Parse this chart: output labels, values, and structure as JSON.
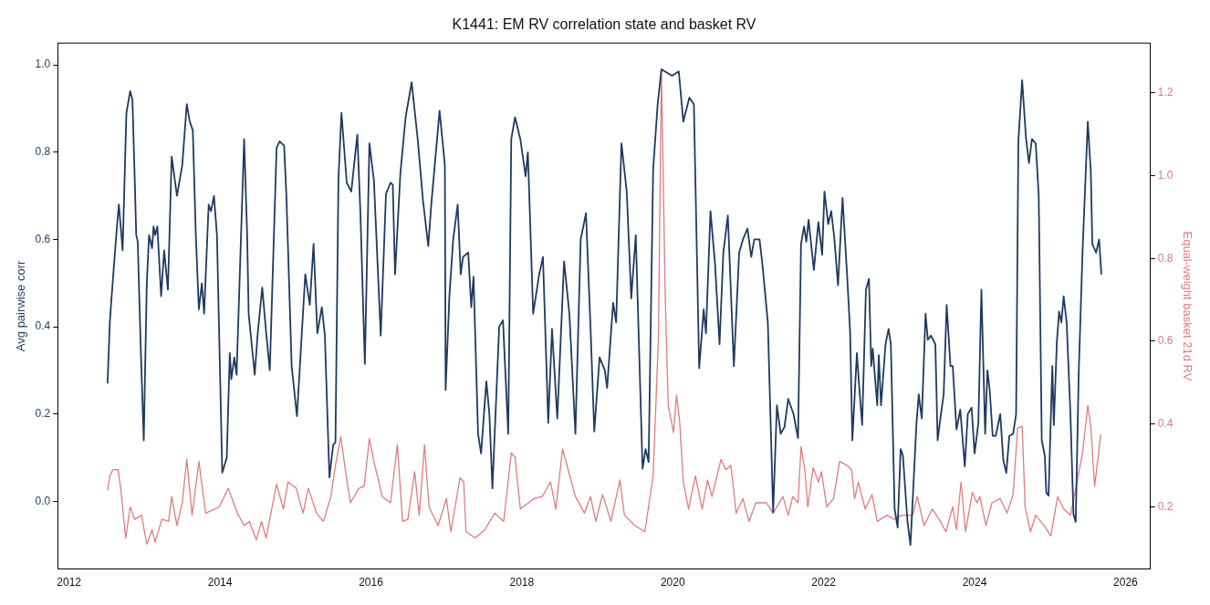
{
  "chart_data": {
    "type": "line",
    "title": "K1441: EM RV correlation state and basket RV",
    "ylabel": "Avg pairwise corr",
    "y2label": "Equal-weight basket 21d RV",
    "xlim": [
      2011.85,
      2026.33
    ],
    "xticks": [
      2012,
      2014,
      2016,
      2018,
      2020,
      2022,
      2024,
      2026
    ],
    "ylim": [
      -0.155,
      1.05
    ],
    "yticks": [
      {
        "value": 0,
        "label": "0.0"
      },
      0.2,
      0.4,
      0.6,
      0.8,
      {
        "value": 1,
        "label": "1.0"
      }
    ],
    "y2lim": [
      0.05,
      1.32
    ],
    "y2ticks": [
      0.2,
      0.4,
      0.6,
      0.8,
      {
        "value": 1,
        "label": "1.0"
      },
      1.2
    ],
    "grid": false,
    "legend": false,
    "marker": "none",
    "line_style": "solid",
    "series": [
      {
        "color": "#1f3a5f",
        "axis": "y",
        "x": [
          2012.51,
          2012.54,
          2012.56,
          2012.63,
          2012.66,
          2012.71,
          2012.75,
          2012.76,
          2012.81,
          2012.84,
          2012.87,
          2012.89,
          2012.91,
          2012.95,
          2012.99,
          2013.03,
          2013.06,
          2013.1,
          2013.12,
          2013.14,
          2013.17,
          2013.22,
          2013.26,
          2013.31,
          2013.36,
          2013.43,
          2013.5,
          2013.56,
          2013.6,
          2013.64,
          2013.68,
          2013.72,
          2013.76,
          2013.79,
          2013.85,
          2013.88,
          2013.92,
          2013.96,
          2014.03,
          2014.09,
          2014.13,
          2014.15,
          2014.19,
          2014.22,
          2014.32,
          2014.36,
          2014.38,
          2014.46,
          2014.5,
          2014.56,
          2014.61,
          2014.66,
          2014.75,
          2014.79,
          2014.85,
          2014.88,
          2014.95,
          2015.02,
          2015.13,
          2015.19,
          2015.24,
          2015.29,
          2015.35,
          2015.39,
          2015.45,
          2015.5,
          2015.53,
          2015.57,
          2015.61,
          2015.68,
          2015.74,
          2015.82,
          2015.86,
          2015.92,
          2015.98,
          2016.04,
          2016.13,
          2016.2,
          2016.26,
          2016.29,
          2016.32,
          2016.39,
          2016.46,
          2016.54,
          2016.62,
          2016.69,
          2016.76,
          2016.8,
          2016.91,
          2016.98,
          2016.99,
          2017.04,
          2017.09,
          2017.15,
          2017.19,
          2017.22,
          2017.29,
          2017.33,
          2017.36,
          2017.42,
          2017.46,
          2017.53,
          2017.57,
          2017.61,
          2017.7,
          2017.75,
          2017.82,
          2017.86,
          2017.91,
          2017.98,
          2018.05,
          2018.08,
          2018.15,
          2018.23,
          2018.28,
          2018.35,
          2018.4,
          2018.47,
          2018.56,
          2018.63,
          2018.71,
          2018.78,
          2018.85,
          2018.91,
          2018.96,
          2019.03,
          2019.1,
          2019.13,
          2019.21,
          2019.25,
          2019.32,
          2019.39,
          2019.45,
          2019.51,
          2019.6,
          2019.64,
          2019.68,
          2019.74,
          2019.8,
          2019.85,
          2019.99,
          2020.08,
          2020.14,
          2020.22,
          2020.28,
          2020.35,
          2020.41,
          2020.44,
          2020.5,
          2020.56,
          2020.62,
          2020.67,
          2020.73,
          2020.81,
          2020.88,
          2020.93,
          2020.99,
          2021.04,
          2021.08,
          2021.15,
          2021.19,
          2021.26,
          2021.33,
          2021.38,
          2021.43,
          2021.48,
          2021.53,
          2021.6,
          2021.66,
          2021.7,
          2021.74,
          2021.77,
          2021.8,
          2021.87,
          2021.93,
          2021.98,
          2022.01,
          2022.06,
          2022.1,
          2022.14,
          2022.19,
          2022.25,
          2022.31,
          2022.35,
          2022.38,
          2022.44,
          2022.47,
          2022.51,
          2022.56,
          2022.6,
          2022.63,
          2022.65,
          2022.71,
          2022.73,
          2022.76,
          2022.82,
          2022.86,
          2022.89,
          2022.94,
          2022.98,
          2023.02,
          2023.05,
          2023.11,
          2023.15,
          2023.23,
          2023.26,
          2023.3,
          2023.35,
          2023.38,
          2023.42,
          2023.48,
          2023.51,
          2023.55,
          2023.59,
          2023.63,
          2023.68,
          2023.71,
          2023.76,
          2023.81,
          2023.87,
          2023.91,
          2023.96,
          2024.0,
          2024.05,
          2024.09,
          2024.14,
          2024.17,
          2024.2,
          2024.24,
          2024.28,
          2024.34,
          2024.38,
          2024.42,
          2024.46,
          2024.51,
          2024.55,
          2024.58,
          2024.63,
          2024.68,
          2024.72,
          2024.76,
          2024.81,
          2024.85,
          2024.89,
          2024.93,
          2024.95,
          2024.98,
          2025.03,
          2025.05,
          2025.09,
          2025.12,
          2025.15,
          2025.18,
          2025.22,
          2025.27,
          2025.31,
          2025.34,
          2025.38,
          2025.43,
          2025.5,
          2025.54,
          2025.56,
          2025.61,
          2025.65,
          2025.68
        ],
        "values": [
          0.27,
          0.41,
          0.46,
          0.62,
          0.68,
          0.575,
          0.83,
          0.89,
          0.94,
          0.92,
          0.74,
          0.61,
          0.595,
          0.35,
          0.14,
          0.5,
          0.61,
          0.58,
          0.63,
          0.61,
          0.63,
          0.47,
          0.575,
          0.485,
          0.79,
          0.7,
          0.77,
          0.91,
          0.87,
          0.85,
          0.61,
          0.44,
          0.5,
          0.43,
          0.68,
          0.665,
          0.7,
          0.61,
          0.066,
          0.1,
          0.34,
          0.28,
          0.33,
          0.29,
          0.83,
          0.61,
          0.43,
          0.29,
          0.385,
          0.49,
          0.39,
          0.3,
          0.81,
          0.825,
          0.815,
          0.7,
          0.31,
          0.195,
          0.52,
          0.45,
          0.59,
          0.385,
          0.445,
          0.38,
          0.055,
          0.13,
          0.135,
          0.74,
          0.89,
          0.73,
          0.71,
          0.84,
          0.665,
          0.315,
          0.82,
          0.735,
          0.38,
          0.705,
          0.73,
          0.725,
          0.52,
          0.75,
          0.88,
          0.96,
          0.83,
          0.69,
          0.585,
          0.68,
          0.895,
          0.77,
          0.255,
          0.47,
          0.6,
          0.68,
          0.52,
          0.56,
          0.57,
          0.445,
          0.515,
          0.155,
          0.11,
          0.275,
          0.2,
          0.03,
          0.4,
          0.415,
          0.155,
          0.83,
          0.88,
          0.83,
          0.745,
          0.8,
          0.43,
          0.52,
          0.56,
          0.18,
          0.395,
          0.19,
          0.55,
          0.43,
          0.155,
          0.6,
          0.66,
          0.4,
          0.16,
          0.33,
          0.3,
          0.26,
          0.455,
          0.41,
          0.82,
          0.71,
          0.465,
          0.61,
          0.075,
          0.12,
          0.09,
          0.76,
          0.91,
          0.99,
          0.975,
          0.985,
          0.87,
          0.925,
          0.91,
          0.305,
          0.44,
          0.385,
          0.665,
          0.545,
          0.36,
          0.57,
          0.655,
          0.31,
          0.57,
          0.6,
          0.625,
          0.56,
          0.6,
          0.6,
          0.54,
          0.41,
          -0.025,
          0.22,
          0.155,
          0.17,
          0.235,
          0.2,
          0.145,
          0.59,
          0.63,
          0.595,
          0.645,
          0.53,
          0.64,
          0.565,
          0.71,
          0.635,
          0.665,
          0.605,
          0.495,
          0.695,
          0.52,
          0.39,
          0.14,
          0.34,
          0.265,
          0.175,
          0.485,
          0.51,
          0.31,
          0.35,
          0.22,
          0.335,
          0.22,
          0.36,
          0.395,
          0.36,
          -0.017,
          -0.06,
          0.12,
          0.105,
          -0.045,
          -0.1,
          0.18,
          0.245,
          0.19,
          0.43,
          0.37,
          0.38,
          0.36,
          0.14,
          0.195,
          0.245,
          0.45,
          0.31,
          0.31,
          0.165,
          0.21,
          0.08,
          0.2,
          0.215,
          0.11,
          0.18,
          0.485,
          0.155,
          0.3,
          0.255,
          0.15,
          0.15,
          0.2,
          0.095,
          0.065,
          0.15,
          0.155,
          0.2,
          0.825,
          0.965,
          0.835,
          0.775,
          0.83,
          0.82,
          0.7,
          0.14,
          0.105,
          0.02,
          0.013,
          0.31,
          0.175,
          0.365,
          0.435,
          0.41,
          0.47,
          0.41,
          0.2,
          -0.03,
          -0.047,
          0.295,
          0.57,
          0.87,
          0.755,
          0.59,
          0.57,
          0.6,
          0.52
        ]
      },
      {
        "color": "#e07c80",
        "axis": "y2",
        "x": [
          2012.51,
          2012.54,
          2012.58,
          2012.65,
          2012.69,
          2012.75,
          2012.81,
          2012.87,
          2012.96,
          2013.03,
          2013.1,
          2013.14,
          2013.23,
          2013.32,
          2013.36,
          2013.43,
          2013.5,
          2013.56,
          2013.63,
          2013.72,
          2013.81,
          2013.99,
          2014.11,
          2014.23,
          2014.32,
          2014.39,
          2014.48,
          2014.55,
          2014.61,
          2014.75,
          2014.84,
          2014.9,
          2015.01,
          2015.1,
          2015.17,
          2015.28,
          2015.37,
          2015.47,
          2015.53,
          2015.6,
          2015.68,
          2015.73,
          2015.84,
          2015.91,
          2015.98,
          2016.04,
          2016.15,
          2016.26,
          2016.35,
          2016.42,
          2016.49,
          2016.58,
          2016.64,
          2016.71,
          2016.77,
          2016.89,
          2017.0,
          2017.06,
          2017.18,
          2017.23,
          2017.26,
          2017.38,
          2017.51,
          2017.64,
          2017.76,
          2017.86,
          2017.91,
          2017.98,
          2018.09,
          2018.16,
          2018.27,
          2018.38,
          2018.45,
          2018.54,
          2018.65,
          2018.71,
          2018.83,
          2018.91,
          2018.98,
          2019.07,
          2019.18,
          2019.3,
          2019.36,
          2019.5,
          2019.63,
          2019.74,
          2019.81,
          2019.85,
          2019.9,
          2019.94,
          2020.01,
          2020.05,
          2020.09,
          2020.14,
          2020.21,
          2020.3,
          2020.39,
          2020.46,
          2020.52,
          2020.64,
          2020.7,
          2020.77,
          2020.84,
          2020.93,
          2021.01,
          2021.1,
          2021.24,
          2021.33,
          2021.46,
          2021.53,
          2021.59,
          2021.66,
          2021.7,
          2021.75,
          2021.79,
          2021.86,
          2021.93,
          2021.97,
          2022.04,
          2022.13,
          2022.21,
          2022.31,
          2022.37,
          2022.41,
          2022.46,
          2022.55,
          2022.64,
          2022.71,
          2022.84,
          2022.93,
          2023.04,
          2023.18,
          2023.24,
          2023.33,
          2023.44,
          2023.53,
          2023.62,
          2023.71,
          2023.76,
          2023.82,
          2023.88,
          2023.97,
          2024.03,
          2024.07,
          2024.15,
          2024.23,
          2024.34,
          2024.43,
          2024.51,
          2024.57,
          2024.63,
          2024.67,
          2024.74,
          2024.81,
          2024.92,
          2025.01,
          2025.1,
          2025.18,
          2025.27,
          2025.34,
          2025.43,
          2025.5,
          2025.54,
          2025.59,
          2025.64,
          2025.67
        ],
        "values": [
          0.24,
          0.275,
          0.29,
          0.29,
          0.235,
          0.125,
          0.2,
          0.17,
          0.18,
          0.11,
          0.145,
          0.115,
          0.17,
          0.165,
          0.225,
          0.155,
          0.21,
          0.315,
          0.18,
          0.31,
          0.185,
          0.2,
          0.245,
          0.185,
          0.155,
          0.165,
          0.12,
          0.165,
          0.125,
          0.255,
          0.195,
          0.26,
          0.245,
          0.185,
          0.245,
          0.185,
          0.165,
          0.225,
          0.3,
          0.37,
          0.265,
          0.21,
          0.245,
          0.25,
          0.365,
          0.31,
          0.225,
          0.21,
          0.35,
          0.165,
          0.17,
          0.285,
          0.18,
          0.35,
          0.2,
          0.155,
          0.22,
          0.14,
          0.27,
          0.26,
          0.14,
          0.125,
          0.145,
          0.185,
          0.165,
          0.33,
          0.32,
          0.195,
          0.21,
          0.22,
          0.225,
          0.26,
          0.195,
          0.34,
          0.265,
          0.225,
          0.185,
          0.225,
          0.165,
          0.23,
          0.165,
          0.265,
          0.18,
          0.155,
          0.14,
          0.275,
          0.61,
          1.255,
          0.71,
          0.445,
          0.38,
          0.47,
          0.41,
          0.26,
          0.195,
          0.275,
          0.195,
          0.265,
          0.225,
          0.315,
          0.29,
          0.3,
          0.185,
          0.22,
          0.165,
          0.21,
          0.21,
          0.185,
          0.225,
          0.18,
          0.225,
          0.21,
          0.345,
          0.29,
          0.2,
          0.295,
          0.26,
          0.285,
          0.2,
          0.22,
          0.31,
          0.3,
          0.29,
          0.22,
          0.26,
          0.195,
          0.23,
          0.165,
          0.18,
          0.17,
          0.18,
          0.18,
          0.225,
          0.155,
          0.195,
          0.17,
          0.14,
          0.2,
          0.145,
          0.26,
          0.14,
          0.235,
          0.21,
          0.225,
          0.155,
          0.21,
          0.22,
          0.185,
          0.23,
          0.39,
          0.395,
          0.2,
          0.14,
          0.18,
          0.155,
          0.13,
          0.225,
          0.195,
          0.18,
          0.245,
          0.33,
          0.445,
          0.395,
          0.25,
          0.325,
          0.375
        ]
      }
    ]
  }
}
